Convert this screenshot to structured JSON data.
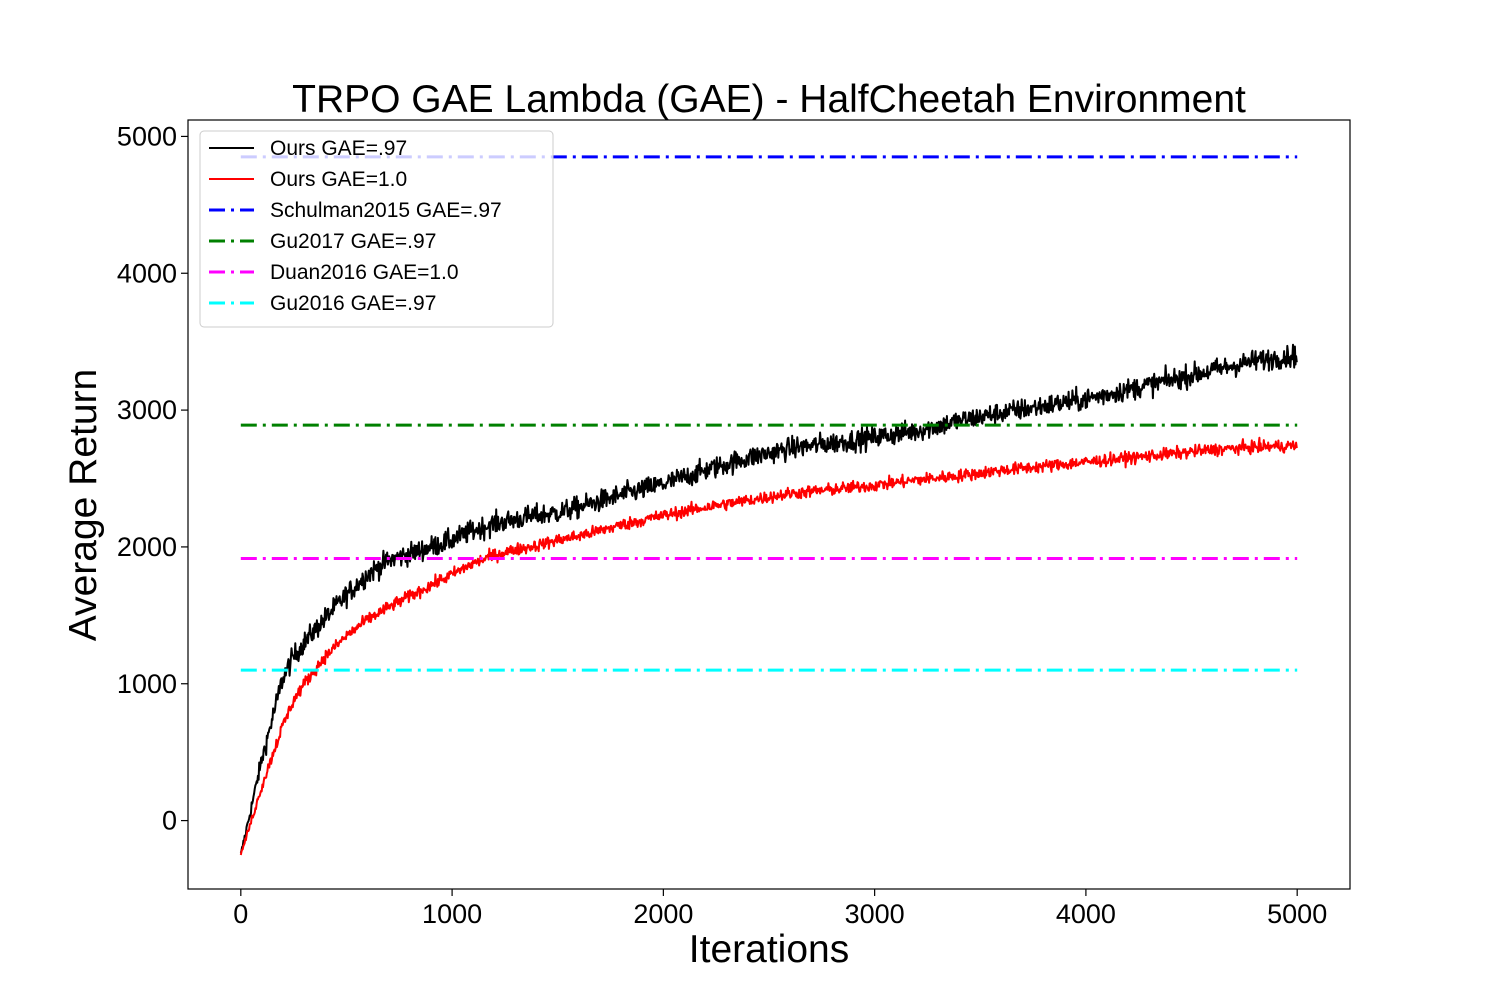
{
  "chart_data": {
    "type": "line",
    "title": "TRPO GAE Lambda (GAE) - HalfCheetah Environment",
    "xlabel": "Iterations",
    "ylabel": "Average Return",
    "xlim": [
      -250,
      5250
    ],
    "ylim": [
      -500,
      5120
    ],
    "xticks": [
      0,
      1000,
      2000,
      3000,
      4000,
      5000
    ],
    "yticks": [
      0,
      1000,
      2000,
      3000,
      4000,
      5000
    ],
    "grid": false,
    "legend_position": "top-left",
    "series": [
      {
        "name": "Ours GAE=.97",
        "color": "#000000",
        "style": "solid",
        "noise": 80,
        "x": [
          0,
          50,
          100,
          150,
          200,
          250,
          300,
          400,
          500,
          600,
          700,
          800,
          900,
          1000,
          1100,
          1200,
          1300,
          1400,
          1500,
          1600,
          1800,
          2000,
          2200,
          2400,
          2600,
          2800,
          3000,
          3200,
          3400,
          3600,
          3800,
          4000,
          4200,
          4400,
          4600,
          4800,
          5000
        ],
        "y": [
          -250,
          100,
          450,
          750,
          1050,
          1200,
          1300,
          1480,
          1650,
          1800,
          1900,
          1950,
          2000,
          2050,
          2120,
          2170,
          2200,
          2230,
          2250,
          2290,
          2380,
          2460,
          2560,
          2650,
          2720,
          2760,
          2800,
          2850,
          2920,
          2980,
          3030,
          3080,
          3150,
          3220,
          3290,
          3360,
          3400
        ]
      },
      {
        "name": "Ours GAE=1.0",
        "color": "#ff0000",
        "style": "solid",
        "noise": 45,
        "x": [
          0,
          50,
          100,
          150,
          200,
          250,
          300,
          400,
          500,
          600,
          700,
          800,
          900,
          1000,
          1100,
          1200,
          1300,
          1400,
          1500,
          1600,
          1800,
          2000,
          2200,
          2400,
          2600,
          2800,
          3000,
          3200,
          3400,
          3600,
          3800,
          4000,
          4200,
          4400,
          4600,
          4800,
          5000
        ],
        "y": [
          -250,
          0,
          250,
          480,
          700,
          880,
          1000,
          1200,
          1350,
          1470,
          1560,
          1640,
          1720,
          1800,
          1880,
          1940,
          1980,
          2010,
          2050,
          2080,
          2160,
          2230,
          2290,
          2340,
          2390,
          2420,
          2450,
          2490,
          2520,
          2560,
          2590,
          2620,
          2650,
          2680,
          2710,
          2730,
          2740
        ]
      },
      {
        "name": "Schulman2015 GAE=.97",
        "color": "#0000ff",
        "style": "dashdot",
        "x": [
          0,
          5000
        ],
        "y": [
          4850,
          4850
        ]
      },
      {
        "name": "Gu2017 GAE=.97",
        "color": "#008000",
        "style": "dashdot",
        "x": [
          0,
          5000
        ],
        "y": [
          2890,
          2890
        ]
      },
      {
        "name": "Duan2016 GAE=1.0",
        "color": "#ff00ff",
        "style": "dashdot",
        "x": [
          0,
          5000
        ],
        "y": [
          1915,
          1915
        ]
      },
      {
        "name": "Gu2016 GAE=.97",
        "color": "#00ffff",
        "style": "dashdot",
        "x": [
          0,
          5000
        ],
        "y": [
          1100,
          1100
        ]
      }
    ]
  }
}
